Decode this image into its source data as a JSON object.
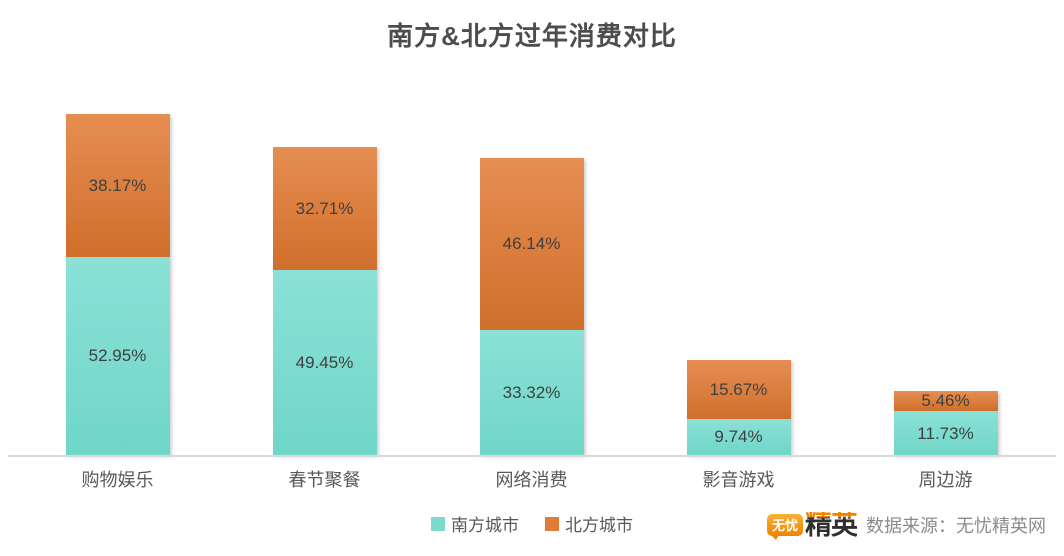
{
  "title": "南方&北方过年消费对比",
  "chart_data": {
    "type": "bar",
    "stacked": true,
    "title": "南方&北方过年消费对比",
    "categories": [
      "购物娱乐",
      "春节聚餐",
      "网络消费",
      "影音游戏",
      "周边游"
    ],
    "series": [
      {
        "name": "南方城市",
        "color": "#7bdacd",
        "values": [
          52.95,
          49.45,
          33.32,
          9.74,
          11.73
        ],
        "labels": [
          "52.95%",
          "49.45%",
          "33.32%",
          "9.74%",
          "11.73%"
        ]
      },
      {
        "name": "北方城市",
        "color": "#df7b36",
        "values": [
          38.17,
          32.71,
          46.14,
          15.67,
          5.46
        ],
        "labels": [
          "38.17%",
          "32.71%",
          "46.14%",
          "15.67%",
          "5.46%"
        ]
      }
    ],
    "ylim": [
      0,
      100
    ],
    "xlabel": "",
    "ylabel": "",
    "grid": false,
    "legend_position": "bottom"
  },
  "footer": {
    "logo": {
      "badge": "无忧",
      "name": "精英"
    },
    "source": "数据来源：无忧精英网"
  },
  "colors": {
    "south": "#7bdacd",
    "north": "#df7b36",
    "axis": "#d9d9d9",
    "title_text": "#4d4d4d",
    "data_label": "#3f3f3f"
  }
}
